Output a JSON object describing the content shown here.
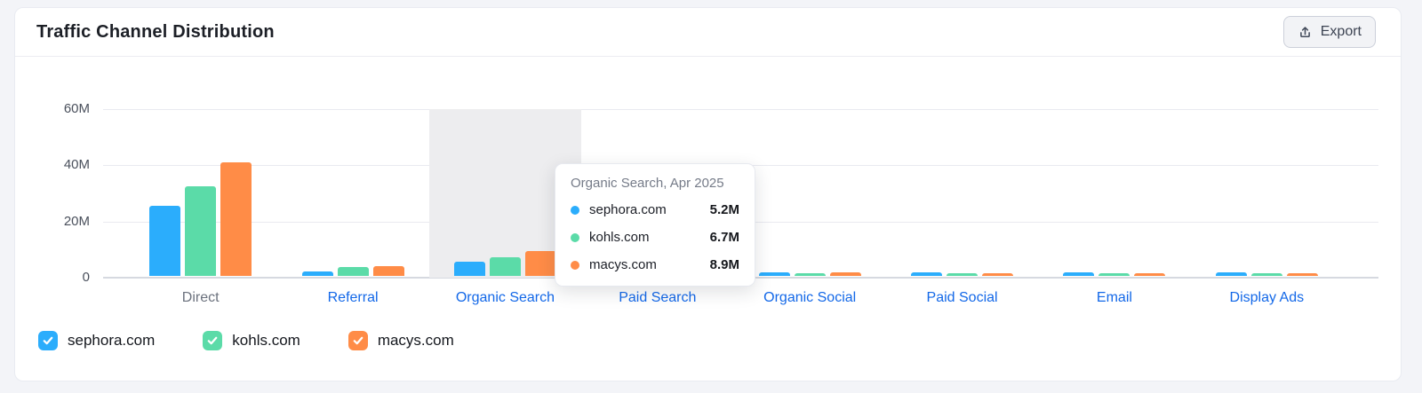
{
  "card": {
    "title": "Traffic Channel Distribution",
    "export_label": "Export"
  },
  "chart_data": {
    "type": "bar",
    "title": "Traffic Channel Distribution",
    "unit": "visits (millions)",
    "categories": [
      {
        "label": "Direct",
        "link": false
      },
      {
        "label": "Referral",
        "link": true
      },
      {
        "label": "Organic Search",
        "link": true
      },
      {
        "label": "Paid Search",
        "link": true
      },
      {
        "label": "Organic Social",
        "link": true
      },
      {
        "label": "Paid Social",
        "link": true
      },
      {
        "label": "Email",
        "link": true
      },
      {
        "label": "Display Ads",
        "link": true
      }
    ],
    "series": [
      {
        "name": "sephora.com",
        "color": "#2badfc",
        "values_M": [
          25,
          1.6,
          5.2,
          null,
          1.2,
          1.2,
          1.3,
          1.2
        ]
      },
      {
        "name": "kohls.com",
        "color": "#5bdba8",
        "values_M": [
          32,
          3.1,
          6.7,
          null,
          1.0,
          1.0,
          1.0,
          1.1
        ]
      },
      {
        "name": "macys.com",
        "color": "#ff8c47",
        "values_M": [
          40.5,
          3.6,
          8.9,
          null,
          1.2,
          1.1,
          1.1,
          1.0
        ]
      }
    ],
    "y_axis": {
      "tick_labels": [
        "0",
        "20M",
        "40M",
        "60M"
      ],
      "tick_values_M": [
        0,
        20,
        40,
        60
      ],
      "max_M": 60
    },
    "grid": true,
    "highlighted_category": "Organic Search",
    "legend_position": "bottom"
  },
  "tooltip": {
    "title": "Organic Search, Apr 2025",
    "rows": [
      {
        "name": "sephora.com",
        "value": "5.2M",
        "color": "#2badfc"
      },
      {
        "name": "kohls.com",
        "value": "6.7M",
        "color": "#5bdba8"
      },
      {
        "name": "macys.com",
        "value": "8.9M",
        "color": "#ff8c47"
      }
    ]
  },
  "legend": {
    "items": [
      {
        "label": "sephora.com",
        "color": "#2badfc",
        "checked": true
      },
      {
        "label": "kohls.com",
        "color": "#5bdba8",
        "checked": true
      },
      {
        "label": "macys.com",
        "color": "#ff8c47",
        "checked": true
      }
    ]
  },
  "colors": {
    "category_link": "#1368e8",
    "category_plain": "#6c727e",
    "highlight_band": "#ededef"
  }
}
